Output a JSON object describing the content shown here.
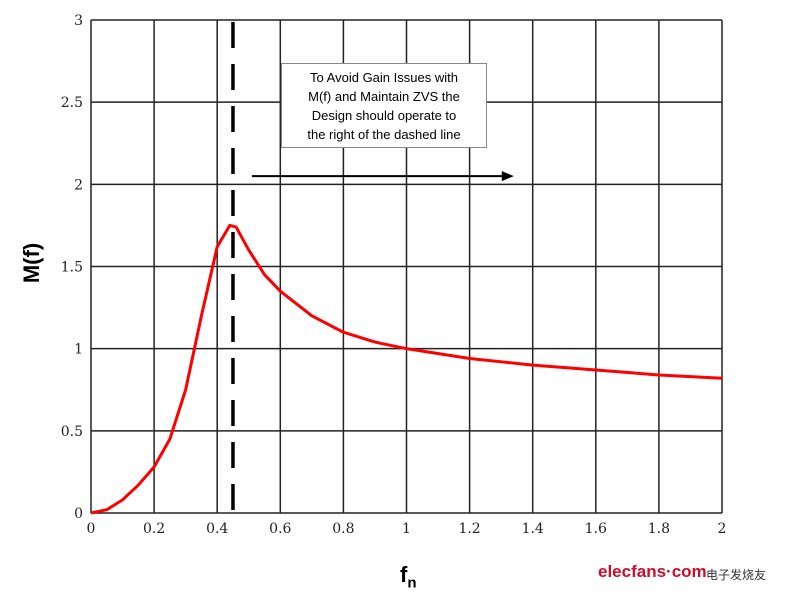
{
  "chart_data": {
    "type": "line",
    "xlabel": "f",
    "xlabel_sub": "n",
    "ylabel": "M(f)",
    "xlim": [
      0,
      2
    ],
    "ylim": [
      0,
      3
    ],
    "grid": true,
    "xticks": [
      "0",
      "0.2",
      "0.4",
      "0.6",
      "0.8",
      "1",
      "1.2",
      "1.4",
      "1.6",
      "1.8",
      "2"
    ],
    "yticks": [
      "0",
      "0.5",
      "1",
      "1.5",
      "2",
      "2.5",
      "3"
    ],
    "series": [
      {
        "color": "#ff0000",
        "x": [
          0,
          0.05,
          0.1,
          0.15,
          0.2,
          0.25,
          0.3,
          0.35,
          0.4,
          0.44,
          0.46,
          0.5,
          0.55,
          0.6,
          0.7,
          0.8,
          0.9,
          1,
          1.2,
          1.4,
          1.6,
          1.8,
          2
        ],
        "y": [
          0,
          0.02,
          0.08,
          0.17,
          0.28,
          0.45,
          0.75,
          1.2,
          1.62,
          1.75,
          1.74,
          1.6,
          1.45,
          1.35,
          1.2,
          1.1,
          1.04,
          1,
          0.94,
          0.9,
          0.87,
          0.84,
          0.82
        ]
      }
    ],
    "dashed_line_x": 0.45,
    "arrow": {
      "x1": 0.51,
      "x2": 1.34,
      "y": 2.05
    },
    "annotation": [
      "To Avoid Gain Issues with",
      "M(f) and Maintain ZVS the",
      "Design should operate to",
      "the right of the dashed line"
    ]
  },
  "watermark": {
    "brand": "elecfans·com",
    "cn": "电子发烧友"
  }
}
